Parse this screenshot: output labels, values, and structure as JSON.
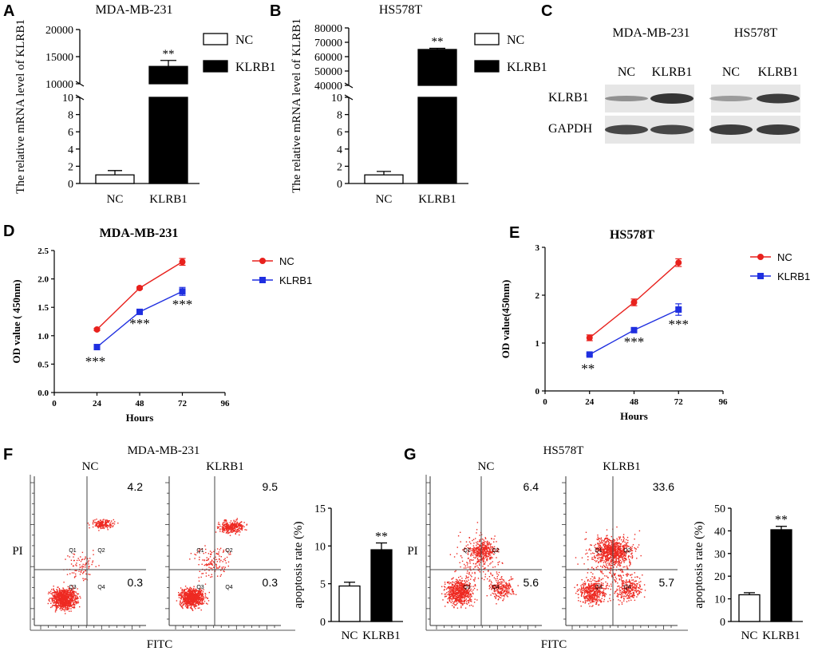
{
  "colors": {
    "ink": "#000000",
    "nc_line": "#e8211d",
    "klrb1_line": "#1f2fe0",
    "dot": "#ee2a22",
    "blot_band": "#2a2a2a",
    "blot_bg": "#e6e6e6"
  },
  "panels": {
    "A": "A",
    "B": "B",
    "C": "C",
    "D": "D",
    "E": "E",
    "F": "F",
    "G": "G"
  },
  "chart_data": [
    {
      "panel": "A",
      "type": "bar",
      "title": "MDA-MB-231",
      "ylabel": "The relative mRNA level of KLRB1",
      "categories": [
        "NC",
        "KLRB1"
      ],
      "values": [
        1.0,
        13200
      ],
      "errors": [
        0.5,
        1100
      ],
      "legend": [
        "NC",
        "KLRB1"
      ],
      "significance": [
        "",
        "**"
      ],
      "axis_break": true,
      "upper_ticks": [
        "10000",
        "15000",
        "20000"
      ],
      "upper_range": [
        10000,
        20000
      ],
      "lower_ticks": [
        "0",
        "2",
        "4",
        "6",
        "8",
        "10"
      ],
      "lower_range": [
        0,
        10
      ]
    },
    {
      "panel": "B",
      "type": "bar",
      "title": "HS578T",
      "ylabel": "The relative mRNA level of KLRB1",
      "categories": [
        "NC",
        "KLRB1"
      ],
      "values": [
        1.0,
        65000
      ],
      "errors": [
        0.4,
        800
      ],
      "legend": [
        "NC",
        "KLRB1"
      ],
      "significance": [
        "",
        "**"
      ],
      "axis_break": true,
      "upper_ticks": [
        "40000",
        "50000",
        "60000",
        "70000",
        "80000"
      ],
      "upper_range": [
        40000,
        80000
      ],
      "lower_ticks": [
        "0",
        "2",
        "4",
        "6",
        "8",
        "10"
      ],
      "lower_range": [
        0,
        10
      ]
    },
    {
      "panel": "C",
      "type": "western-blot",
      "cell_lines": [
        "MDA-MB-231",
        "HS578T"
      ],
      "lanes": [
        "NC",
        "KLRB1",
        "NC",
        "KLRB1"
      ],
      "proteins": [
        "KLRB1",
        "GAPDH"
      ]
    },
    {
      "panel": "D",
      "type": "line",
      "title": "MDA-MB-231",
      "xlabel": "Hours",
      "ylabel": "OD value ( 450nm)",
      "x": [
        24,
        48,
        72
      ],
      "xticks": [
        "0",
        "24",
        "48",
        "72",
        "96"
      ],
      "xlim": [
        0,
        96
      ],
      "yticks": [
        "0.0",
        "0.5",
        "1.0",
        "1.5",
        "2.0",
        "2.5"
      ],
      "ylim": [
        0,
        2.5
      ],
      "series": [
        {
          "name": "NC",
          "values": [
            1.11,
            1.84,
            2.3
          ],
          "errors": [
            0.02,
            0.02,
            0.06
          ]
        },
        {
          "name": "KLRB1",
          "values": [
            0.8,
            1.42,
            1.78
          ],
          "errors": [
            0.02,
            0.03,
            0.07
          ]
        }
      ],
      "significance": [
        "***",
        "***",
        "***"
      ]
    },
    {
      "panel": "E",
      "type": "line",
      "title": "HS578T",
      "xlabel": "Hours",
      "ylabel": "OD value(450nm)",
      "x": [
        24,
        48,
        72
      ],
      "xticks": [
        "0",
        "24",
        "48",
        "72",
        "96"
      ],
      "xlim": [
        0,
        96
      ],
      "yticks": [
        "0",
        "1",
        "2",
        "3"
      ],
      "ylim": [
        0,
        3
      ],
      "series": [
        {
          "name": "NC",
          "values": [
            1.11,
            1.85,
            2.68
          ],
          "errors": [
            0.06,
            0.07,
            0.08
          ]
        },
        {
          "name": "KLRB1",
          "values": [
            0.76,
            1.27,
            1.7
          ],
          "errors": [
            0.02,
            0.04,
            0.12
          ]
        }
      ],
      "significance": [
        "**",
        "***",
        "***"
      ]
    },
    {
      "panel": "F",
      "type": "flow-cytometry+bar",
      "title": "MDA-MB-231",
      "plots": [
        {
          "label": "NC",
          "q2": "4.2",
          "q4": "0.3"
        },
        {
          "label": "KLRB1",
          "q2": "9.5",
          "q4": "0.3"
        }
      ],
      "quadrants": [
        "Q1",
        "Q2",
        "Q3",
        "Q4"
      ],
      "x_axis": "FITC",
      "y_axis": "PI",
      "bar": {
        "ylabel": "apoptosis rate (%)",
        "categories": [
          "NC",
          "KLRB1"
        ],
        "values": [
          4.7,
          9.5
        ],
        "errors": [
          0.5,
          0.9
        ],
        "ylim": [
          0,
          15
        ],
        "yticks": [
          "0",
          "5",
          "10",
          "15"
        ],
        "significance": [
          "",
          "**"
        ]
      }
    },
    {
      "panel": "G",
      "type": "flow-cytometry+bar",
      "title": "HS578T",
      "plots": [
        {
          "label": "NC",
          "q2": "6.4",
          "q4": "5.6"
        },
        {
          "label": "KLRB1",
          "q2": "33.6",
          "q4": "5.7"
        }
      ],
      "quadrants": [
        "Q1",
        "Q2",
        "Q3",
        "Q4"
      ],
      "x_axis": "FITC",
      "y_axis": "PI",
      "bar": {
        "ylabel": "apoptosis rate (%)",
        "categories": [
          "NC",
          "KLRB1"
        ],
        "values": [
          11.8,
          40.5
        ],
        "errors": [
          0.9,
          1.5
        ],
        "ylim": [
          0,
          50
        ],
        "yticks": [
          "0",
          "10",
          "20",
          "30",
          "40",
          "50"
        ],
        "significance": [
          "",
          "**"
        ]
      }
    }
  ]
}
